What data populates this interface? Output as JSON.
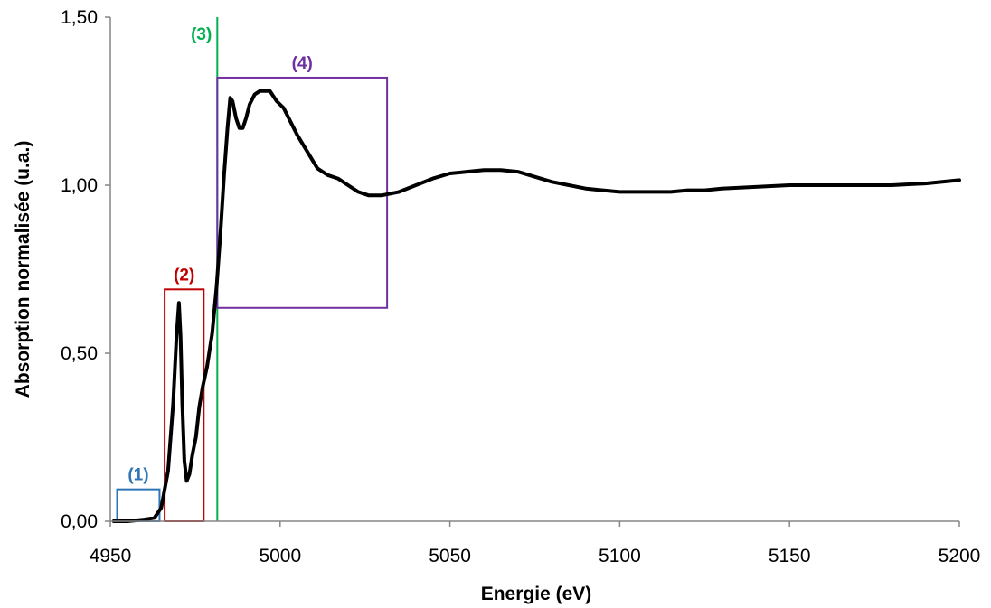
{
  "chart_data": {
    "type": "line",
    "xlabel": "Energie (eV)",
    "ylabel": "Absorption normalisée (u.a.)",
    "xlim": [
      4950,
      5200
    ],
    "ylim": [
      0,
      1.5
    ],
    "xticks": [
      4950,
      5000,
      5050,
      5100,
      5150,
      5200
    ],
    "xtick_labels": [
      "4950",
      "5000",
      "5050",
      "5100",
      "5150",
      "5200"
    ],
    "yticks": [
      0,
      0.5,
      1.0,
      1.5
    ],
    "ytick_labels": [
      "0,00",
      "0,50",
      "1,00",
      "1,50"
    ],
    "grid": false,
    "series": [
      {
        "color": "#000000",
        "x": [
          4951,
          4955,
          4960,
          4963,
          4965,
          4967,
          4968.5,
          4969.5,
          4970.2,
          4970.7,
          4971.2,
          4971.8,
          4972.5,
          4973.3,
          4974.2,
          4975.2,
          4976.2,
          4977.2,
          4978.5,
          4980,
          4981.3,
          4982.5,
          4983.5,
          4984.5,
          4985.3,
          4986,
          4987,
          4988,
          4989,
          4990,
          4991,
          4992.5,
          4994,
          4995.5,
          4997,
          4999,
          5001,
          5003,
          5005,
          5008,
          5011,
          5014,
          5017,
          5020,
          5023,
          5026,
          5030,
          5035,
          5040,
          5045,
          5050,
          5055,
          5060,
          5065,
          5070,
          5075,
          5080,
          5085,
          5090,
          5095,
          5100,
          5105,
          5110,
          5115,
          5120,
          5125,
          5130,
          5140,
          5150,
          5160,
          5170,
          5180,
          5190,
          5200
        ],
        "y": [
          0.0,
          0.0,
          0.005,
          0.01,
          0.04,
          0.15,
          0.35,
          0.55,
          0.65,
          0.55,
          0.35,
          0.18,
          0.12,
          0.14,
          0.2,
          0.25,
          0.34,
          0.4,
          0.46,
          0.56,
          0.7,
          0.87,
          1.03,
          1.17,
          1.26,
          1.25,
          1.2,
          1.17,
          1.17,
          1.2,
          1.24,
          1.27,
          1.28,
          1.28,
          1.28,
          1.25,
          1.23,
          1.19,
          1.15,
          1.1,
          1.05,
          1.03,
          1.02,
          1.0,
          0.98,
          0.97,
          0.97,
          0.98,
          1.0,
          1.02,
          1.035,
          1.04,
          1.045,
          1.045,
          1.04,
          1.025,
          1.01,
          1.0,
          0.99,
          0.985,
          0.98,
          0.98,
          0.98,
          0.98,
          0.985,
          0.985,
          0.99,
          0.995,
          1.0,
          1.0,
          1.0,
          1.0,
          1.005,
          1.015
        ]
      }
    ],
    "annotations": [
      {
        "label": "(1)",
        "color": "#2E75B6",
        "shape": "box",
        "x": [
          4952,
          4964.5
        ],
        "y": [
          0.0,
          0.095
        ]
      },
      {
        "label": "(2)",
        "color": "#C00000",
        "shape": "box",
        "x": [
          4966,
          4977.5
        ],
        "y": [
          0.0,
          0.69
        ]
      },
      {
        "label": "(3)",
        "color": "#00B050",
        "shape": "vline",
        "x": 4981.5
      },
      {
        "label": "(4)",
        "color": "#7030A0",
        "shape": "box",
        "x": [
          4981.5,
          5031.5
        ],
        "y": [
          0.635,
          1.32
        ]
      }
    ]
  }
}
